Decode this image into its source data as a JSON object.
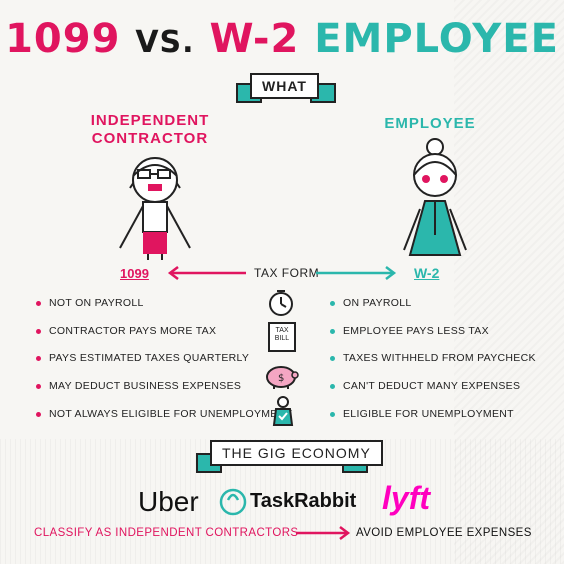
{
  "title": {
    "part1": "1099",
    "part2": "VS.",
    "part3": "W-2",
    "part4": "EMPLOYEE"
  },
  "what_label": "WHAT",
  "left_heading": [
    "INDEPENDENT",
    "CONTRACTOR"
  ],
  "right_heading": "EMPLOYEE",
  "tax_form": {
    "left": "1099",
    "center": "TAX FORM",
    "right": "W-2"
  },
  "tax_bill_text": [
    "TAX",
    "BILL"
  ],
  "left_items": [
    "NOT ON PAYROLL",
    "CONTRACTOR PAYS MORE TAX",
    "PAYS ESTIMATED TAXES QUARTERLY",
    "MAY DEDUCT BUSINESS EXPENSES",
    "NOT ALWAYS ELIGIBLE FOR UNEMPLOYMENT"
  ],
  "right_items": [
    "ON PAYROLL",
    "EMPLOYEE PAYS LESS TAX",
    "TAXES WITHHELD FROM PAYCHECK",
    "CAN'T DEDUCT MANY EXPENSES",
    "ELIGIBLE FOR UNEMPLOYMENT"
  ],
  "gig_label": "THE GIG ECONOMY",
  "logos": {
    "uber": "Uber",
    "taskrabbit_task": "Task",
    "taskrabbit_rabbit": "Rabbit",
    "lyft": "lyft"
  },
  "bottom": {
    "left": "CLASSIFY AS INDEPENDENT CONTRACTORS",
    "right": "AVOID EMPLOYEE EXPENSES"
  },
  "colors": {
    "pink": "#e0155f",
    "teal": "#2bb7ac",
    "ink": "#222222"
  }
}
